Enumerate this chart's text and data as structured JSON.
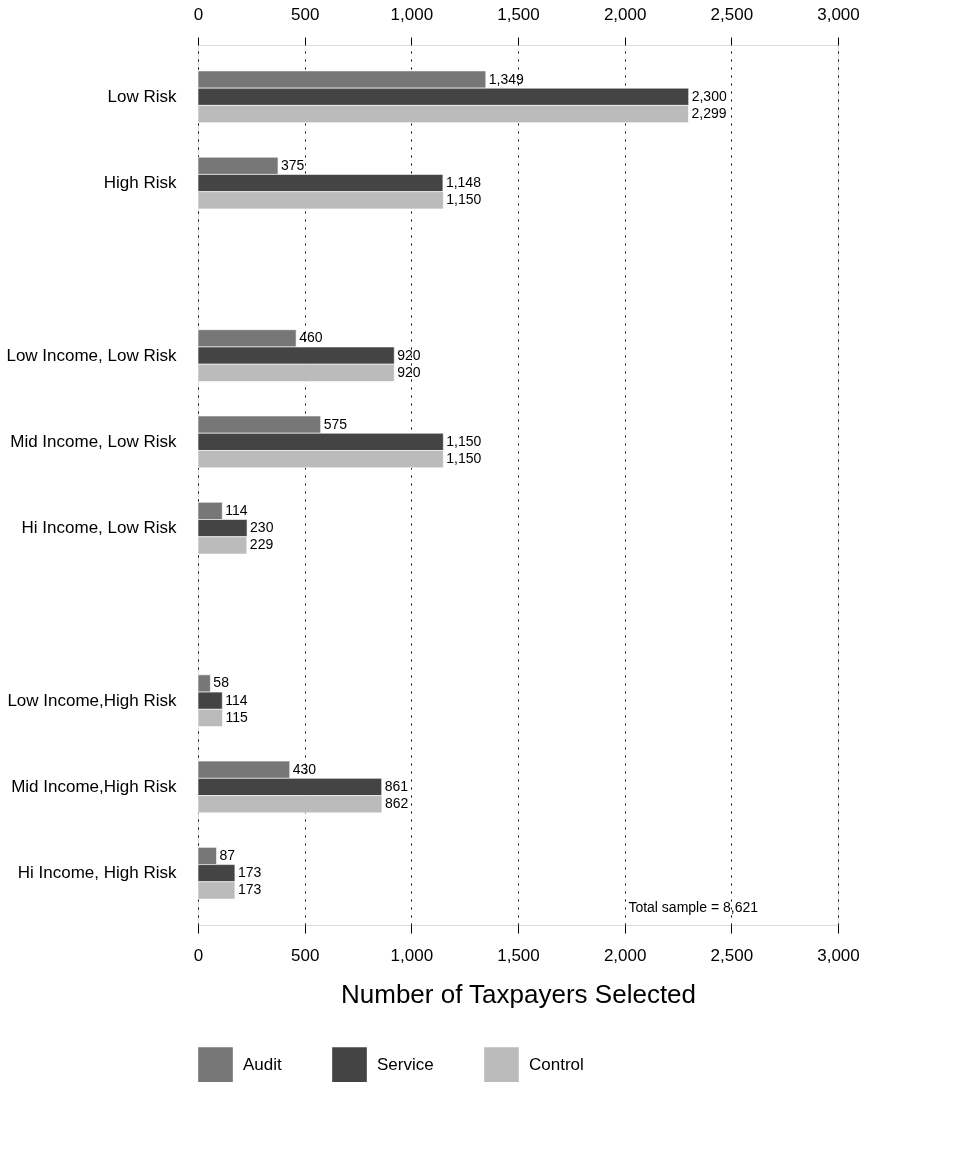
{
  "chart_data": {
    "type": "bar",
    "orientation": "horizontal",
    "xlabel": "Number of Taxpayers Selected",
    "categories": [
      "Low Risk",
      "High Risk",
      null,
      "Low Income, Low Risk",
      "Mid Income, Low Risk",
      "Hi Income,  Low Risk",
      null,
      "Low Income,High Risk",
      "Mid Income,High Risk",
      "Hi Income, High Risk"
    ],
    "series": [
      {
        "name": "Audit",
        "color": "#777777",
        "values": [
          1349,
          375,
          null,
          460,
          575,
          114,
          null,
          58,
          430,
          87
        ],
        "value_labels": [
          "1,349",
          "375",
          null,
          "460",
          "575",
          "114",
          null,
          "58",
          "430",
          "87"
        ]
      },
      {
        "name": "Service",
        "color": "#444444",
        "values": [
          2300,
          1148,
          null,
          920,
          1150,
          230,
          null,
          114,
          861,
          173
        ],
        "value_labels": [
          "2,300",
          "1,148",
          null,
          "920",
          "1,150",
          "230",
          null,
          "114",
          "861",
          "173"
        ]
      },
      {
        "name": "Control",
        "color": "#bbbbbb",
        "values": [
          2299,
          1150,
          null,
          920,
          1150,
          229,
          null,
          115,
          862,
          173
        ],
        "value_labels": [
          "2,299",
          "1,150",
          null,
          "920",
          "1,150",
          "229",
          null,
          "115",
          "862",
          "173"
        ]
      }
    ],
    "xlim": [
      0,
      3000
    ],
    "xticks": [
      0,
      500,
      {
        "value": 1000,
        "label": "1,000"
      },
      {
        "value": 1500,
        "label": "1,500"
      },
      {
        "value": 2000,
        "label": "2,000"
      },
      {
        "value": 2500,
        "label": "2,500"
      },
      {
        "value": 3000,
        "label": "3,000"
      }
    ],
    "x2lim": [
      0,
      3000
    ],
    "x2ticks": [
      0,
      500,
      {
        "value": 1000,
        "label": "1,000"
      },
      {
        "value": 1500,
        "label": "1,500"
      },
      {
        "value": 2000,
        "label": "2,000"
      },
      {
        "value": 2500,
        "label": "2,500"
      },
      {
        "value": 3000,
        "label": "3,000"
      }
    ],
    "grid": "x",
    "legend": "bottom",
    "annotations": [
      "Total sample = 8,621"
    ]
  }
}
